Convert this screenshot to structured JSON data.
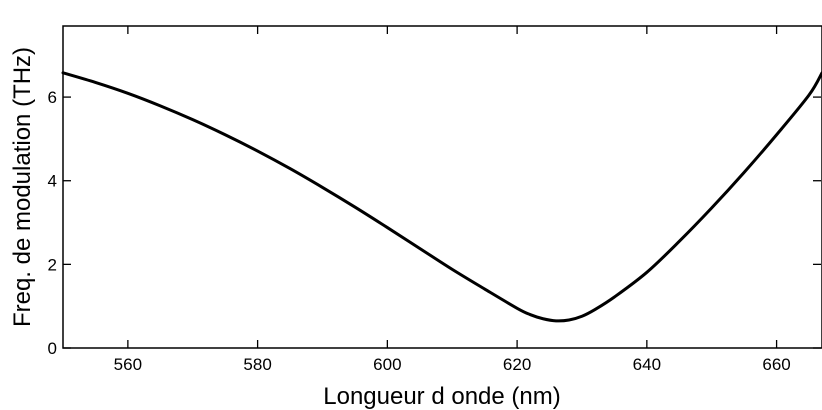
{
  "chart_data": {
    "type": "line",
    "title": "",
    "xlabel": "Longueur d onde (nm)",
    "ylabel": "Freq. de modulation (THz)",
    "xlim": [
      550,
      667
    ],
    "ylim": [
      0,
      7.7
    ],
    "xticks": [
      560,
      580,
      600,
      620,
      640,
      660
    ],
    "yticks": [
      0,
      2,
      4,
      6
    ],
    "xtick_labels": [
      "560",
      "580",
      "600",
      "620",
      "640",
      "660"
    ],
    "ytick_labels": [
      "0",
      "2",
      "4",
      "6"
    ],
    "grid": false,
    "legend": "none",
    "line_color": "#000000",
    "series": [
      {
        "x": [
          550,
          555,
          560,
          565,
          570,
          575,
          580,
          585,
          590,
          595,
          600,
          605,
          610,
          615,
          620,
          622,
          624,
          626,
          628,
          630,
          632,
          635,
          640,
          645,
          650,
          655,
          660,
          665,
          667
        ],
        "values": [
          6.58,
          6.35,
          6.09,
          5.79,
          5.46,
          5.1,
          4.71,
          4.29,
          3.84,
          3.37,
          2.88,
          2.38,
          1.88,
          1.41,
          0.95,
          0.8,
          0.7,
          0.65,
          0.67,
          0.76,
          0.92,
          1.22,
          1.81,
          2.55,
          3.35,
          4.2,
          5.1,
          6.05,
          6.58
        ]
      }
    ]
  }
}
